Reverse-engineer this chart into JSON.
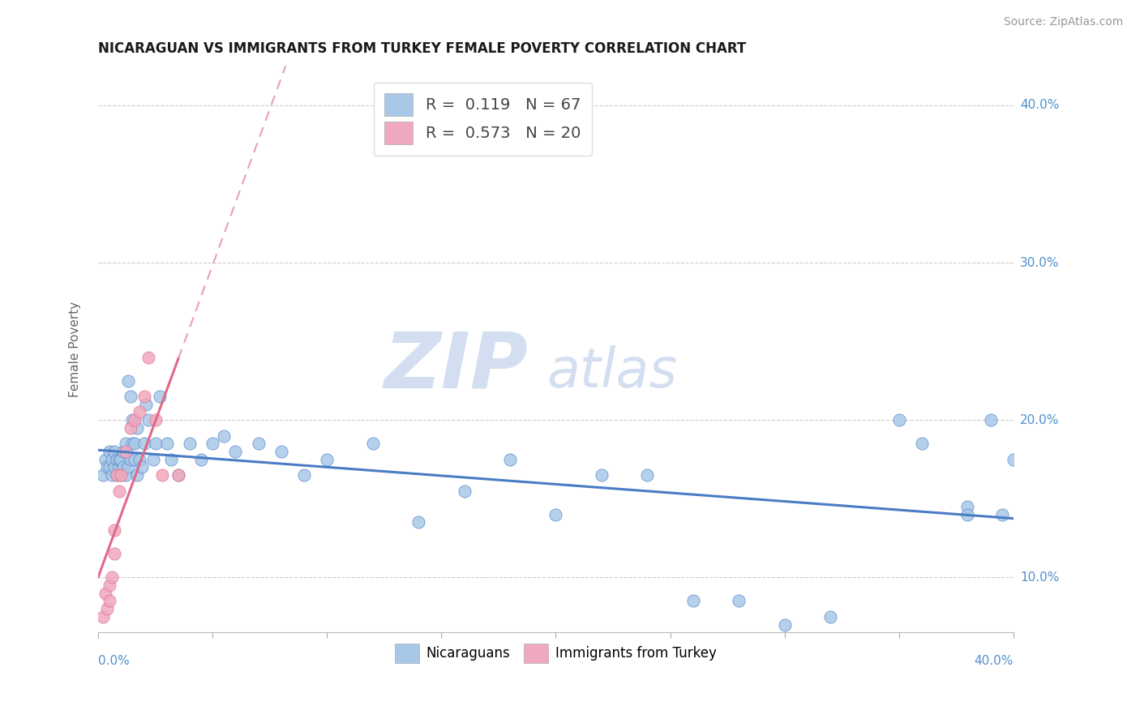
{
  "title": "NICARAGUAN VS IMMIGRANTS FROM TURKEY FEMALE POVERTY CORRELATION CHART",
  "source": "Source: ZipAtlas.com",
  "ylabel": "Female Poverty",
  "xlim": [
    0.0,
    0.4
  ],
  "ylim": [
    0.065,
    0.425
  ],
  "nic_R": 0.119,
  "nic_N": 67,
  "tur_R": 0.573,
  "tur_N": 20,
  "blue_scatter": "#a8c8e8",
  "pink_scatter": "#f0a8be",
  "blue_line": "#4a7cc4",
  "pink_line": "#e06888",
  "pink_line_dashed": "#e8a0b4",
  "watermark_color": "#c8d8ee",
  "grid_color": "#cccccc",
  "tick_label_color": "#5090cc",
  "y_ticks": [
    0.1,
    0.2,
    0.3,
    0.4
  ],
  "nic_x": [
    0.002,
    0.003,
    0.004,
    0.005,
    0.005,
    0.006,
    0.006,
    0.007,
    0.007,
    0.008,
    0.008,
    0.009,
    0.009,
    0.01,
    0.01,
    0.011,
    0.011,
    0.012,
    0.012,
    0.013,
    0.013,
    0.014,
    0.014,
    0.015,
    0.015,
    0.016,
    0.016,
    0.017,
    0.017,
    0.018,
    0.019,
    0.02,
    0.021,
    0.022,
    0.024,
    0.025,
    0.027,
    0.03,
    0.032,
    0.035,
    0.04,
    0.045,
    0.05,
    0.055,
    0.06,
    0.07,
    0.08,
    0.09,
    0.1,
    0.12,
    0.14,
    0.16,
    0.18,
    0.2,
    0.22,
    0.24,
    0.26,
    0.28,
    0.3,
    0.32,
    0.35,
    0.36,
    0.38,
    0.38,
    0.39,
    0.395,
    0.4
  ],
  "nic_y": [
    0.165,
    0.175,
    0.17,
    0.17,
    0.18,
    0.165,
    0.175,
    0.17,
    0.18,
    0.165,
    0.175,
    0.17,
    0.175,
    0.165,
    0.175,
    0.17,
    0.18,
    0.165,
    0.185,
    0.17,
    0.225,
    0.215,
    0.175,
    0.185,
    0.2,
    0.175,
    0.185,
    0.195,
    0.165,
    0.175,
    0.17,
    0.185,
    0.21,
    0.2,
    0.175,
    0.185,
    0.215,
    0.185,
    0.175,
    0.165,
    0.185,
    0.175,
    0.185,
    0.19,
    0.18,
    0.185,
    0.18,
    0.165,
    0.175,
    0.185,
    0.135,
    0.155,
    0.175,
    0.14,
    0.165,
    0.165,
    0.085,
    0.085,
    0.07,
    0.075,
    0.2,
    0.185,
    0.145,
    0.14,
    0.2,
    0.14,
    0.175
  ],
  "tur_x": [
    0.002,
    0.003,
    0.004,
    0.005,
    0.005,
    0.006,
    0.007,
    0.007,
    0.008,
    0.009,
    0.01,
    0.012,
    0.014,
    0.016,
    0.018,
    0.02,
    0.022,
    0.025,
    0.028,
    0.035
  ],
  "tur_y": [
    0.075,
    0.09,
    0.08,
    0.085,
    0.095,
    0.1,
    0.115,
    0.13,
    0.165,
    0.155,
    0.165,
    0.18,
    0.195,
    0.2,
    0.205,
    0.215,
    0.24,
    0.2,
    0.165,
    0.165
  ],
  "title_fontsize": 12,
  "source_fontsize": 10,
  "axis_label_fontsize": 11,
  "legend_fontsize": 14
}
